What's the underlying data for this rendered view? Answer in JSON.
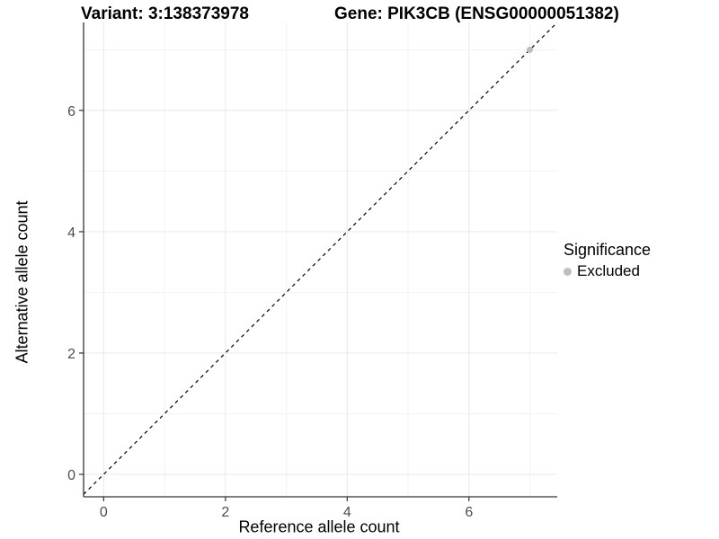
{
  "header": {
    "variant_title": "Variant: 3:138373978",
    "gene_title": "Gene: PIK3CB (ENSG00000051382)"
  },
  "chart_data": {
    "type": "scatter",
    "title": "",
    "xlabel": "Reference allele count",
    "ylabel": "Alternative allele count",
    "xlim": [
      -0.33,
      7.45
    ],
    "ylim": [
      -0.37,
      7.45
    ],
    "x_major_ticks": [
      0,
      2,
      4,
      6
    ],
    "y_major_ticks": [
      0,
      2,
      4,
      6
    ],
    "x_minor_ticks": [
      1,
      3,
      5,
      7
    ],
    "y_minor_ticks": [
      1,
      3,
      5,
      7
    ],
    "grid": true,
    "points": [
      {
        "x": 7,
        "y": 7,
        "significance": "Excluded"
      }
    ],
    "identity_line": {
      "slope": 1,
      "intercept": 0,
      "style": "dashed"
    },
    "legend": {
      "title": "Significance",
      "position": "right",
      "entries": [
        {
          "label": "Excluded",
          "color": "#bebebe"
        }
      ]
    },
    "colors": {
      "grid_major": "#e8e8e8",
      "grid_minor": "#f3f3f3",
      "axis_line": "#333333",
      "tick_label": "#4d4d4d",
      "identity_line": "#000000"
    }
  }
}
